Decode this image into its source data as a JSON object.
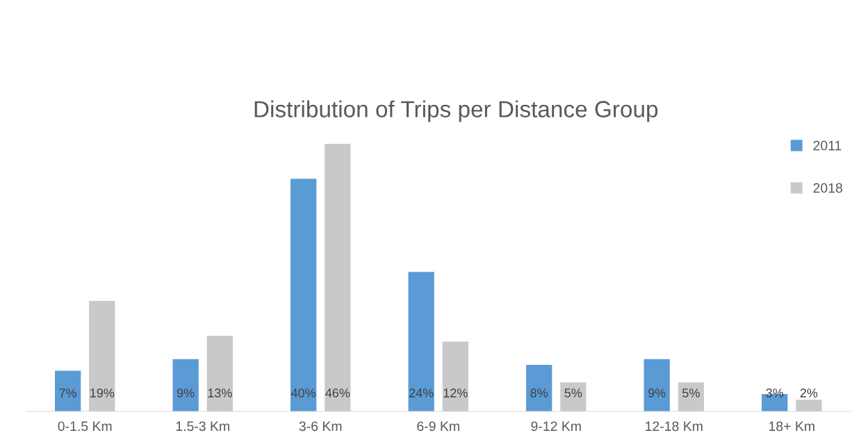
{
  "chart_data": {
    "type": "bar",
    "title": "Distribution of Trips per Distance Group",
    "categories": [
      "0-1.5 Km",
      "1.5-3 Km",
      "3-6 Km",
      "6-9 Km",
      "9-12 Km",
      "12-18 Km",
      "18+ Km"
    ],
    "series": [
      {
        "name": "2011",
        "color": "#5b9bd5",
        "values": [
          7,
          9,
          40,
          24,
          8,
          9,
          3
        ],
        "value_labels": [
          "7%",
          "9%",
          "40%",
          "24%",
          "8%",
          "9%",
          "3%"
        ]
      },
      {
        "name": "2018",
        "color": "#c9c9c9",
        "values": [
          19,
          13,
          46,
          12,
          5,
          5,
          2
        ],
        "value_labels": [
          "19%",
          "13%",
          "46%",
          "12%",
          "5%",
          "5%",
          "2%"
        ]
      }
    ],
    "legend": "top right"
  }
}
